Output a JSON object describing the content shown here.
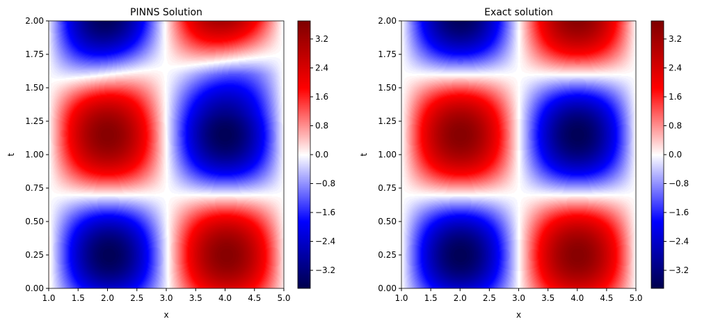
{
  "chart_data": [
    {
      "type": "heatmap",
      "title": "PINNS Solution",
      "xlabel": "x",
      "ylabel": "t",
      "xlim": [
        1.0,
        5.0
      ],
      "ylim": [
        0.0,
        2.0
      ],
      "xticks": [
        "1.0",
        "1.5",
        "2.0",
        "2.5",
        "3.0",
        "3.5",
        "4.0",
        "4.5",
        "5.0"
      ],
      "yticks": [
        "0.00",
        "0.25",
        "0.50",
        "0.75",
        "1.00",
        "1.25",
        "1.50",
        "1.75",
        "2.00"
      ],
      "colormap": "seismic",
      "clim": [
        -3.7,
        3.7
      ],
      "colorbar_ticks": [
        "3.2",
        "2.4",
        "1.6",
        "0.8",
        "0.0",
        "−0.8",
        "−1.6",
        "−2.4",
        "−3.2"
      ],
      "model": {
        "amplitude": 3.6,
        "x_center_max": 2.0,
        "x_center_min": 4.0,
        "t_minimum": 0.25,
        "t_maximum": 1.15,
        "t_period": 1.8,
        "upper_zero_line_t_at_x1": 1.55,
        "upper_zero_line_t_at_x5": 1.75
      }
    },
    {
      "type": "heatmap",
      "title": "Exact solution",
      "xlabel": "x",
      "ylabel": "t",
      "xlim": [
        1.0,
        5.0
      ],
      "ylim": [
        0.0,
        2.0
      ],
      "xticks": [
        "1.0",
        "1.5",
        "2.0",
        "2.5",
        "3.0",
        "3.5",
        "4.0",
        "4.5",
        "5.0"
      ],
      "yticks": [
        "0.00",
        "0.25",
        "0.50",
        "0.75",
        "1.00",
        "1.25",
        "1.50",
        "1.75",
        "2.00"
      ],
      "colormap": "seismic",
      "clim": [
        -3.7,
        3.7
      ],
      "colorbar_ticks": [
        "3.2",
        "2.4",
        "1.6",
        "0.8",
        "0.0",
        "−0.8",
        "−1.6",
        "−2.4",
        "−3.2"
      ],
      "model": {
        "amplitude": 3.6,
        "x_center_max": 2.0,
        "x_center_min": 4.0,
        "t_minimum": 0.25,
        "t_maximum": 1.15,
        "t_period": 1.8
      }
    }
  ]
}
